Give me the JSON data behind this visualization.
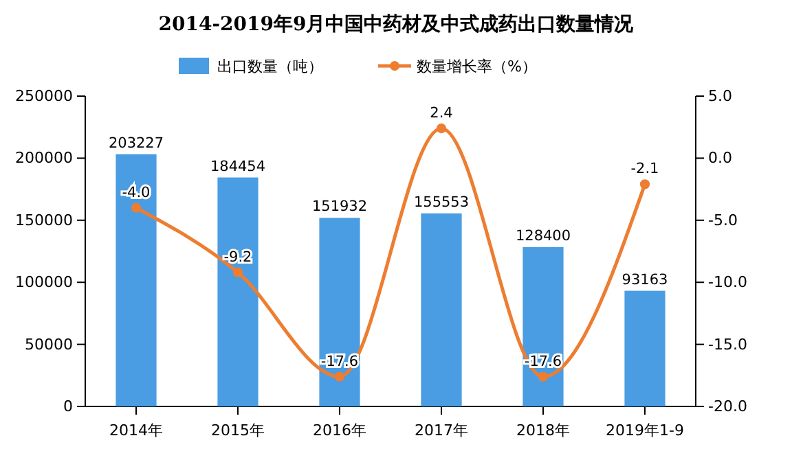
{
  "chart_data": {
    "type": "bar",
    "title": "2014-2019年9月中国中药材及中式成药出口数量情况",
    "categories": [
      "2014年",
      "2015年",
      "2016年",
      "2017年",
      "2018年",
      "2019年1-9"
    ],
    "series": [
      {
        "name": "出口数量（吨）",
        "color": "#4a9de2",
        "values": [
          203227,
          184454,
          151932,
          155553,
          128400,
          93163
        ],
        "value_labels": [
          "203227",
          "184454",
          "151932",
          "155553",
          "128400",
          "93163"
        ]
      },
      {
        "name": "数量增长率（%）",
        "type": "line",
        "axis": "y2",
        "color": "#ed7d31",
        "values": [
          -4.0,
          -9.2,
          -17.6,
          2.4,
          -17.6,
          -2.1
        ],
        "value_labels": [
          "-4.0",
          "-9.2",
          "-17.6",
          "2.4",
          "-17.6",
          "-2.1"
        ]
      }
    ],
    "ylim": [
      0,
      250000
    ],
    "yticks": [
      0,
      50000,
      100000,
      150000,
      200000,
      250000
    ],
    "y2lim": [
      -20,
      5
    ],
    "y2ticks": [
      {
        "value": -20,
        "label": "-20.0"
      },
      {
        "value": -15,
        "label": "-15.0"
      },
      {
        "value": -10,
        "label": "-10.0"
      },
      {
        "value": -5,
        "label": "-5.0"
      },
      {
        "value": 0,
        "label": "0.0"
      },
      {
        "value": 5,
        "label": "5.0"
      }
    ],
    "legend": "top",
    "marker": "circle"
  }
}
